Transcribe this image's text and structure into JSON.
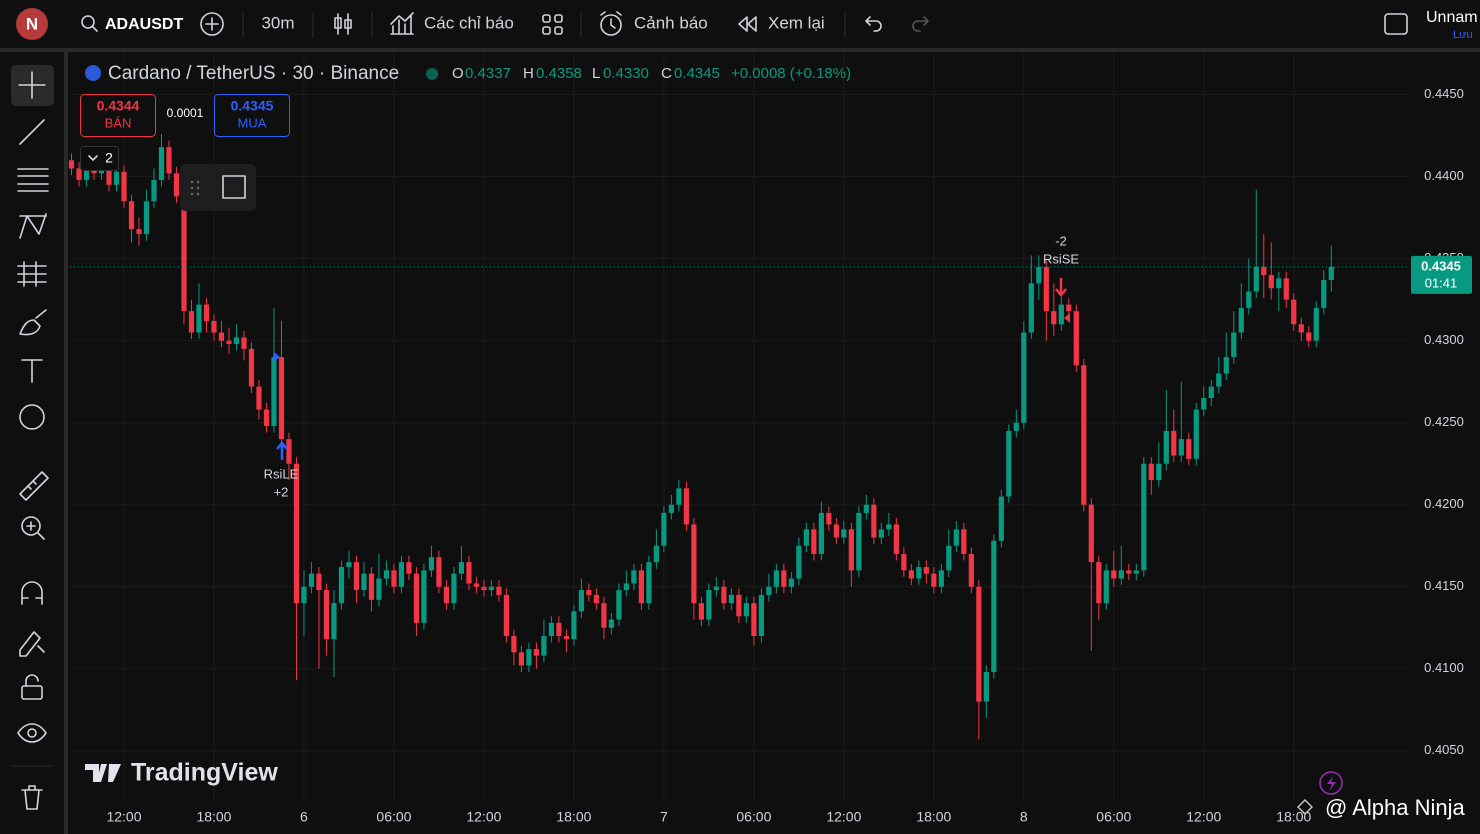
{
  "toolbar": {
    "avatar": "N",
    "symbol": "ADAUSDT",
    "interval": "30m",
    "indicators": "Các chỉ báo",
    "alerts": "Cảnh báo",
    "replay": "Xem lại",
    "layout_name": "Unnam",
    "save": "Lưu"
  },
  "legend": {
    "title": "Cardano / TetherUS · 30 · Binance",
    "o": "O",
    "h": "H",
    "l": "L",
    "c": "C",
    "values": [
      "0.4337",
      "0.4358",
      "0.4330",
      "0.4345"
    ],
    "change": "+0.0008 (+0.18%)"
  },
  "trade": {
    "sell_price": "0.4344",
    "sell": "BÁN",
    "spread": "0.0001",
    "buy_price": "0.4345",
    "buy": "MUA",
    "quantity": "2"
  },
  "signals": [
    {
      "qty": "+2",
      "name": "RsiLE"
    },
    {
      "qty": "-2",
      "name": "RsiSE"
    }
  ],
  "watermark": "TradingView",
  "credit": "@ Alpha Ninja",
  "chart_data": {
    "type": "candlestick",
    "up_color": "#089981",
    "down_color": "#f23645",
    "grid": true,
    "last_price_line": true,
    "countdown": "01:41",
    "open": [
      0.441,
      0.4405,
      0.4398,
      0.441,
      0.4402,
      0.4408,
      0.4395,
      0.4403,
      0.4385,
      0.4368,
      0.4365,
      0.4385,
      0.4398,
      0.4418,
      0.4402,
      0.4388,
      0.4318,
      0.4305,
      0.4322,
      0.4312,
      0.4305,
      0.43,
      0.4298,
      0.4302,
      0.4295,
      0.4272,
      0.4258,
      0.4248,
      0.429,
      0.424,
      0.4225,
      0.414,
      0.415,
      0.4158,
      0.4148,
      0.4118,
      0.414,
      0.4162,
      0.4165,
      0.4148,
      0.4158,
      0.4142,
      0.4155,
      0.416,
      0.415,
      0.4165,
      0.4158,
      0.4128,
      0.416,
      0.4168,
      0.415,
      0.414,
      0.4158,
      0.4165,
      0.4152,
      0.415,
      0.4148,
      0.415,
      0.4145,
      0.412,
      0.411,
      0.4102,
      0.4112,
      0.4108,
      0.412,
      0.4128,
      0.412,
      0.4118,
      0.4135,
      0.4148,
      0.4145,
      0.414,
      0.4125,
      0.413,
      0.4148,
      0.4152,
      0.416,
      0.414,
      0.4165,
      0.4175,
      0.4195,
      0.42,
      0.421,
      0.4188,
      0.414,
      0.413,
      0.4148,
      0.415,
      0.414,
      0.4145,
      0.4132,
      0.414,
      0.412,
      0.4145,
      0.415,
      0.416,
      0.415,
      0.4155,
      0.4175,
      0.4185,
      0.417,
      0.4195,
      0.4188,
      0.418,
      0.4185,
      0.416,
      0.4195,
      0.42,
      0.418,
      0.4185,
      0.4188,
      0.417,
      0.416,
      0.4155,
      0.4162,
      0.4158,
      0.415,
      0.416,
      0.4175,
      0.4185,
      0.417,
      0.415,
      0.408,
      0.4098,
      0.4178,
      0.4205,
      0.4245,
      0.425,
      0.4305,
      0.4335,
      0.4345,
      0.4318,
      0.431,
      0.4322,
      0.4318,
      0.4285,
      0.42,
      0.4165,
      0.414,
      0.416,
      0.4155,
      0.416,
      0.4158,
      0.416,
      0.4225,
      0.4215,
      0.4225,
      0.4245,
      0.423,
      0.424,
      0.4228,
      0.4258,
      0.4265,
      0.4272,
      0.428,
      0.429,
      0.4305,
      0.432,
      0.433,
      0.4345,
      0.434,
      0.4332,
      0.4338,
      0.4325,
      0.431,
      0.4305,
      0.43,
      0.432,
      0.4337
    ],
    "high": [
      0.4414,
      0.4409,
      0.4414,
      0.4414,
      0.4412,
      0.4412,
      0.4407,
      0.4407,
      0.4389,
      0.4375,
      0.4392,
      0.4405,
      0.4426,
      0.4422,
      0.4406,
      0.4392,
      0.4325,
      0.4335,
      0.4326,
      0.4316,
      0.4312,
      0.4308,
      0.431,
      0.4306,
      0.4299,
      0.4276,
      0.4262,
      0.432,
      0.4312,
      0.4244,
      0.4229,
      0.416,
      0.4165,
      0.4162,
      0.4152,
      0.4148,
      0.4166,
      0.4172,
      0.4169,
      0.4165,
      0.4162,
      0.417,
      0.4166,
      0.4164,
      0.4169,
      0.4169,
      0.4162,
      0.4164,
      0.4175,
      0.4172,
      0.4154,
      0.4162,
      0.4175,
      0.4169,
      0.4156,
      0.4154,
      0.4154,
      0.4154,
      0.4149,
      0.4124,
      0.4114,
      0.4116,
      0.4116,
      0.413,
      0.4132,
      0.4132,
      0.4124,
      0.4139,
      0.4155,
      0.4152,
      0.4149,
      0.4144,
      0.4134,
      0.4152,
      0.416,
      0.4164,
      0.4164,
      0.4169,
      0.4185,
      0.4199,
      0.4206,
      0.4215,
      0.4214,
      0.4192,
      0.4144,
      0.4152,
      0.4156,
      0.4154,
      0.4149,
      0.4149,
      0.4144,
      0.4144,
      0.4149,
      0.4158,
      0.4164,
      0.4164,
      0.4159,
      0.418,
      0.4189,
      0.4189,
      0.4202,
      0.4199,
      0.4192,
      0.419,
      0.4189,
      0.4199,
      0.4206,
      0.4204,
      0.4189,
      0.4195,
      0.4192,
      0.4174,
      0.4164,
      0.4166,
      0.4166,
      0.4162,
      0.4164,
      0.4185,
      0.419,
      0.4189,
      0.4174,
      0.4154,
      0.4102,
      0.4182,
      0.4209,
      0.4249,
      0.4258,
      0.4312,
      0.4352,
      0.4352,
      0.4349,
      0.4335,
      0.4328,
      0.4326,
      0.4322,
      0.4289,
      0.4204,
      0.4169,
      0.4164,
      0.4172,
      0.4175,
      0.4164,
      0.4164,
      0.4229,
      0.4229,
      0.4238,
      0.427,
      0.4258,
      0.4275,
      0.4244,
      0.4262,
      0.4272,
      0.4276,
      0.429,
      0.4305,
      0.4318,
      0.4335,
      0.435,
      0.4392,
      0.4365,
      0.436,
      0.4342,
      0.4342,
      0.4329,
      0.4314,
      0.4309,
      0.4324,
      0.4343,
      0.4358
    ],
    "low": [
      0.4401,
      0.4394,
      0.4394,
      0.4398,
      0.4398,
      0.4391,
      0.4391,
      0.4381,
      0.436,
      0.4358,
      0.4361,
      0.4381,
      0.4394,
      0.4398,
      0.4384,
      0.431,
      0.4301,
      0.4301,
      0.4305,
      0.43,
      0.4296,
      0.4292,
      0.4294,
      0.4288,
      0.4268,
      0.4252,
      0.4244,
      0.4244,
      0.4232,
      0.4215,
      0.4093,
      0.412,
      0.4146,
      0.41,
      0.4108,
      0.4095,
      0.4136,
      0.4155,
      0.414,
      0.4144,
      0.4135,
      0.4138,
      0.4151,
      0.4146,
      0.4146,
      0.4154,
      0.412,
      0.4124,
      0.4156,
      0.4146,
      0.4136,
      0.4136,
      0.4154,
      0.4148,
      0.4146,
      0.4144,
      0.4144,
      0.4141,
      0.4116,
      0.4102,
      0.4098,
      0.4098,
      0.41,
      0.4104,
      0.4116,
      0.4116,
      0.411,
      0.4114,
      0.4131,
      0.4141,
      0.4136,
      0.4118,
      0.4121,
      0.4126,
      0.4144,
      0.4148,
      0.4136,
      0.4136,
      0.4161,
      0.4171,
      0.4191,
      0.4196,
      0.4184,
      0.413,
      0.4126,
      0.4126,
      0.4144,
      0.4136,
      0.4136,
      0.4128,
      0.4128,
      0.4114,
      0.4116,
      0.4141,
      0.4146,
      0.4146,
      0.4146,
      0.4151,
      0.4171,
      0.4166,
      0.4166,
      0.4184,
      0.4176,
      0.4176,
      0.415,
      0.4156,
      0.4191,
      0.4176,
      0.4176,
      0.4181,
      0.4166,
      0.4156,
      0.4151,
      0.4151,
      0.4152,
      0.4146,
      0.4146,
      0.4156,
      0.4171,
      0.4166,
      0.4146,
      0.4057,
      0.407,
      0.4094,
      0.4174,
      0.4201,
      0.4241,
      0.4246,
      0.4301,
      0.4325,
      0.43,
      0.4303,
      0.4306,
      0.4314,
      0.4281,
      0.4196,
      0.4111,
      0.413,
      0.4136,
      0.415,
      0.4151,
      0.4154,
      0.4154,
      0.4156,
      0.4206,
      0.4211,
      0.4221,
      0.4226,
      0.4226,
      0.4224,
      0.4224,
      0.4254,
      0.426,
      0.4268,
      0.4276,
      0.4286,
      0.4301,
      0.4316,
      0.4326,
      0.4326,
      0.4325,
      0.4318,
      0.432,
      0.4306,
      0.43,
      0.4296,
      0.4296,
      0.4316,
      0.433
    ],
    "close": [
      0.4405,
      0.4398,
      0.441,
      0.4402,
      0.4408,
      0.4395,
      0.4403,
      0.4385,
      0.4368,
      0.4365,
      0.4385,
      0.4398,
      0.4418,
      0.4402,
      0.4388,
      0.4318,
      0.4305,
      0.4322,
      0.4312,
      0.4305,
      0.43,
      0.4298,
      0.4302,
      0.4295,
      0.4272,
      0.4258,
      0.4248,
      0.429,
      0.424,
      0.4225,
      0.414,
      0.415,
      0.4158,
      0.4148,
      0.4118,
      0.414,
      0.4162,
      0.4165,
      0.4148,
      0.4158,
      0.4142,
      0.4155,
      0.416,
      0.415,
      0.4165,
      0.4158,
      0.4128,
      0.416,
      0.4168,
      0.415,
      0.414,
      0.4158,
      0.4165,
      0.4152,
      0.415,
      0.4148,
      0.415,
      0.4145,
      0.412,
      0.411,
      0.4102,
      0.4112,
      0.4108,
      0.412,
      0.4128,
      0.412,
      0.4118,
      0.4135,
      0.4148,
      0.4145,
      0.414,
      0.4125,
      0.413,
      0.4148,
      0.4152,
      0.416,
      0.414,
      0.4165,
      0.4175,
      0.4195,
      0.42,
      0.421,
      0.4188,
      0.414,
      0.413,
      0.4148,
      0.415,
      0.414,
      0.4145,
      0.4132,
      0.414,
      0.412,
      0.4145,
      0.415,
      0.416,
      0.415,
      0.4155,
      0.4175,
      0.4185,
      0.417,
      0.4195,
      0.4188,
      0.418,
      0.4185,
      0.416,
      0.4195,
      0.42,
      0.418,
      0.4185,
      0.4188,
      0.417,
      0.416,
      0.4155,
      0.4162,
      0.4158,
      0.415,
      0.416,
      0.4175,
      0.4185,
      0.417,
      0.415,
      0.408,
      0.4098,
      0.4178,
      0.4205,
      0.4245,
      0.425,
      0.4305,
      0.4335,
      0.4345,
      0.4318,
      0.431,
      0.4322,
      0.4318,
      0.4285,
      0.42,
      0.4165,
      0.414,
      0.416,
      0.4155,
      0.416,
      0.4158,
      0.416,
      0.4225,
      0.4215,
      0.4225,
      0.4245,
      0.423,
      0.424,
      0.4228,
      0.4258,
      0.4265,
      0.4272,
      0.428,
      0.429,
      0.4305,
      0.432,
      0.433,
      0.4345,
      0.434,
      0.4332,
      0.4338,
      0.4325,
      0.431,
      0.4305,
      0.43,
      0.432,
      0.4337,
      0.4345
    ],
    "ylim": [
      0.402,
      0.4476
    ],
    "yticks": [
      {
        "value": 0.405,
        "label": "0.4050"
      },
      {
        "value": 0.41,
        "label": "0.4100"
      },
      {
        "value": 0.415,
        "label": "0.4150"
      },
      {
        "value": 0.42,
        "label": "0.4200"
      },
      {
        "value": 0.425,
        "label": "0.4250"
      },
      {
        "value": 0.43,
        "label": "0.4300"
      },
      {
        "value": 0.435,
        "label": "0.4350"
      },
      {
        "value": 0.44,
        "label": "0.4400"
      },
      {
        "value": 0.445,
        "label": "0.4450"
      }
    ],
    "xlim": [
      -0.2,
      178.5
    ],
    "xticks": [
      {
        "value": 7,
        "label": "12:00"
      },
      {
        "value": 19,
        "label": "18:00"
      },
      {
        "value": 31,
        "label": "6"
      },
      {
        "value": 43,
        "label": "06:00"
      },
      {
        "value": 55,
        "label": "12:00"
      },
      {
        "value": 67,
        "label": "18:00"
      },
      {
        "value": 79,
        "label": "7"
      },
      {
        "value": 91,
        "label": "06:00"
      },
      {
        "value": 103,
        "label": "12:00"
      },
      {
        "value": 115,
        "label": "18:00"
      },
      {
        "value": 127,
        "label": "8"
      },
      {
        "value": 139,
        "label": "06:00"
      },
      {
        "value": 151,
        "label": "12:00"
      },
      {
        "value": 163,
        "label": "18:00"
      }
    ]
  }
}
